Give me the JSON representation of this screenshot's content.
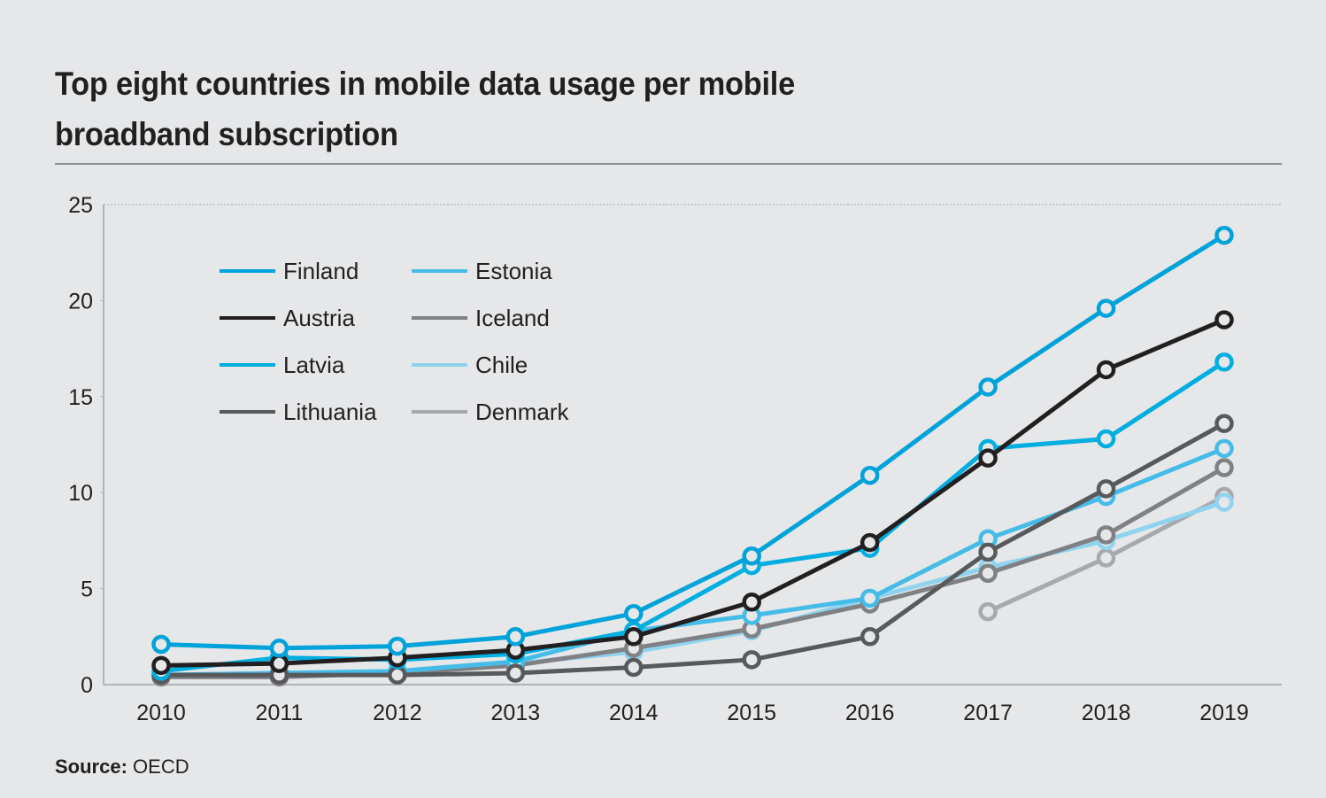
{
  "title": "Top eight countries in mobile data usage per mobile broadband subscription",
  "title_lines": [
    "Top eight countries in mobile data usage per mobile",
    "broadband subscription"
  ],
  "source": {
    "label": "Source:",
    "value": "OECD"
  },
  "chart_data": {
    "type": "line",
    "title": "Top eight countries in mobile data usage per mobile broadband subscription",
    "xlabel": "",
    "ylabel": "",
    "x": [
      "2010",
      "2011",
      "2012",
      "2013",
      "2014",
      "2015",
      "2016",
      "2017",
      "2018",
      "2019"
    ],
    "ylim": [
      0,
      25
    ],
    "yticks": [
      0,
      5,
      10,
      15,
      20,
      25
    ],
    "grid": "top dotted line at 25 only",
    "legend_placement": "top-left",
    "series": [
      {
        "name": "Finland",
        "color": "#00a3d9",
        "values": [
          2.1,
          1.9,
          2.0,
          2.5,
          3.7,
          6.7,
          10.9,
          15.5,
          19.6,
          23.4
        ]
      },
      {
        "name": "Estonia",
        "color": "#45bce8",
        "values": [
          0.5,
          0.6,
          0.7,
          1.2,
          2.8,
          3.6,
          4.5,
          7.6,
          9.8,
          12.3
        ]
      },
      {
        "name": "Austria",
        "color": "#231f20",
        "values": [
          1.0,
          1.1,
          1.4,
          1.8,
          2.5,
          4.3,
          7.4,
          11.8,
          16.4,
          19.0
        ]
      },
      {
        "name": "Iceland",
        "color": "#808184",
        "values": [
          0.4,
          0.4,
          0.6,
          1.0,
          1.9,
          2.9,
          4.2,
          5.8,
          7.8,
          11.3
        ]
      },
      {
        "name": "Latvia",
        "color": "#00aee0",
        "values": [
          0.7,
          1.4,
          1.3,
          1.6,
          2.8,
          6.2,
          7.1,
          12.3,
          12.8,
          16.8
        ]
      },
      {
        "name": "Chile",
        "color": "#8fd3ef",
        "values": [
          0.5,
          0.6,
          0.7,
          1.1,
          1.7,
          2.8,
          4.5,
          6.1,
          7.5,
          9.5
        ]
      },
      {
        "name": "Lithuania",
        "color": "#58595b",
        "values": [
          0.5,
          0.5,
          0.5,
          0.6,
          0.9,
          1.3,
          2.5,
          6.9,
          10.2,
          13.6
        ]
      },
      {
        "name": "Denmark",
        "color": "#a7a9ac",
        "values": [
          null,
          null,
          null,
          null,
          null,
          null,
          null,
          3.8,
          6.6,
          9.8
        ]
      }
    ],
    "draw_order": [
      "Denmark",
      "Chile",
      "Iceland",
      "Estonia",
      "Lithuania",
      "Latvia",
      "Austria",
      "Finland"
    ]
  }
}
